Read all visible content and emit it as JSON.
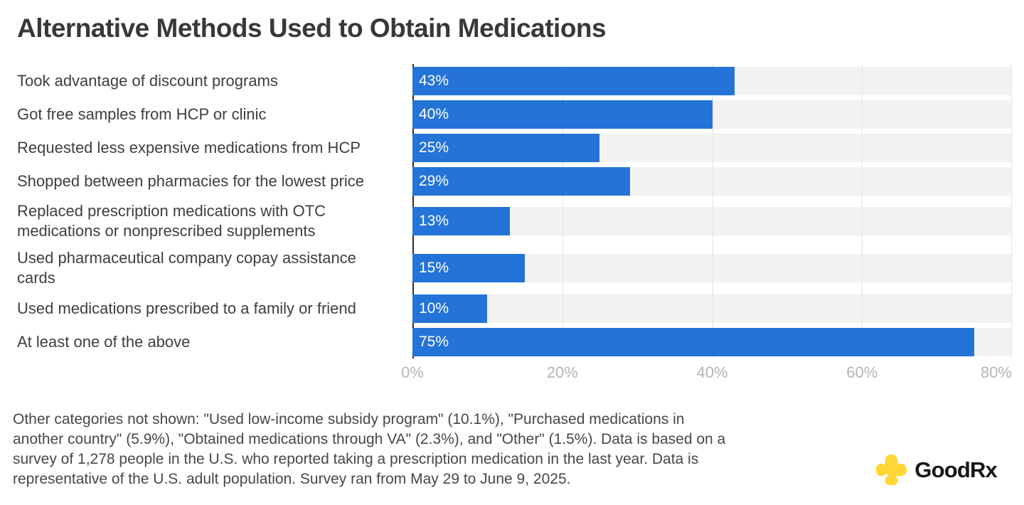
{
  "title": "Alternative Methods Used to Obtain Medications",
  "chart_data": {
    "type": "bar",
    "orientation": "horizontal",
    "title": "Alternative Methods Used to Obtain Medications",
    "categories": [
      "Took advantage of discount programs",
      "Got free samples from HCP or clinic",
      "Requested less expensive medications from HCP",
      "Shopped between pharmacies for the lowest price",
      "Replaced prescription medications with OTC\nmedications or nonprescribed supplements",
      "Used pharmaceutical company copay assistance\ncards",
      "Used medications prescribed to a family or friend",
      "At least one of the above"
    ],
    "values": [
      43,
      40,
      25,
      29,
      13,
      15,
      10,
      75
    ],
    "value_labels": [
      "43%",
      "40%",
      "25%",
      "29%",
      "13%",
      "15%",
      "10%",
      "75%"
    ],
    "xlim": [
      0,
      80
    ],
    "x_ticks": [
      "0%",
      "20%",
      "40%",
      "60%",
      "80%"
    ],
    "grid": "vertical",
    "bar_color": "#2373d9",
    "track_color": "#f2f2f2",
    "legend": "none"
  },
  "footnote": {
    "lines": [
      "Other categories not shown: \"Used low-income subsidy program\" (10.1%), \"Purchased medications in",
      "another country\" (5.9%), \"Obtained medications through VA\" (2.3%), and \"Other\" (1.5%). Data is based on a",
      "survey of 1,278 people in the U.S. who reported taking a prescription medication in the last year. Data is",
      "representative of the U.S. adult population. Survey ran from May 29 to June 9, 2025."
    ]
  },
  "logo": {
    "text": "GoodRx",
    "cross_color": "#ffd633"
  }
}
